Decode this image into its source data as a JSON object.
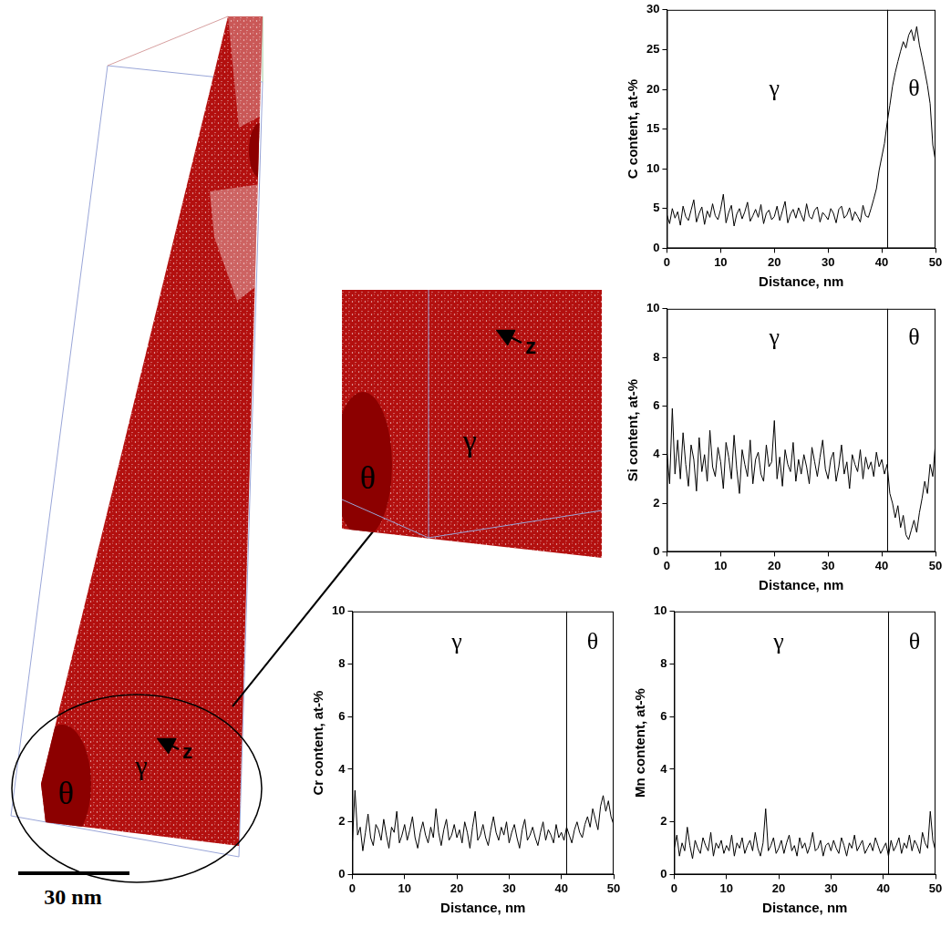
{
  "chart_data": [
    {
      "type": "line",
      "xlabel": "Distance, nm",
      "ylabel": "C content, at-%",
      "x": [
        0,
        0.5,
        1,
        1.5,
        2,
        2.5,
        3,
        3.5,
        4,
        4.5,
        5,
        5.5,
        6,
        6.5,
        7,
        7.5,
        8,
        8.5,
        9,
        9.5,
        10,
        10.5,
        11,
        11.5,
        12,
        12.5,
        13,
        13.5,
        14,
        14.5,
        15,
        15.5,
        16,
        16.5,
        17,
        17.5,
        18,
        18.5,
        19,
        19.5,
        20,
        20.5,
        21,
        21.5,
        22,
        22.5,
        23,
        23.5,
        24,
        24.5,
        25,
        25.5,
        26,
        26.5,
        27,
        27.5,
        28,
        28.5,
        29,
        29.5,
        30,
        30.5,
        31,
        31.5,
        32,
        32.5,
        33,
        33.5,
        34,
        34.5,
        35,
        35.5,
        36,
        36.5,
        37,
        37.5,
        38,
        38.5,
        39,
        39.5,
        40,
        40.5,
        41,
        41.5,
        42,
        42.5,
        43,
        43.5,
        44,
        44.5,
        45,
        45.5,
        46,
        46.5,
        47,
        47.5,
        48,
        48.5,
        49,
        49.5,
        50
      ],
      "series": [
        {
          "name": "C",
          "color": "#000000",
          "values": [
            4.2,
            3.1,
            5.0,
            3.8,
            4.6,
            2.9,
            5.3,
            4.0,
            3.5,
            4.8,
            6.1,
            3.3,
            4.4,
            5.2,
            3.0,
            4.7,
            3.9,
            5.6,
            4.1,
            3.6,
            4.9,
            6.8,
            3.2,
            4.5,
            5.4,
            2.8,
            4.3,
            5.0,
            3.7,
            4.6,
            5.8,
            3.4,
            4.1,
            4.9,
            3.9,
            5.5,
            3.1,
            4.4,
            4.8,
            3.6,
            4.0,
            5.3,
            3.5,
            4.7,
            5.9,
            3.2,
            4.3,
            4.9,
            3.8,
            5.1,
            4.2,
            3.4,
            5.6,
            4.0,
            3.7,
            4.8,
            5.2,
            3.3,
            4.5,
            4.1,
            3.6,
            5.0,
            4.4,
            3.2,
            4.9,
            5.3,
            3.8,
            4.2,
            5.1,
            3.5,
            4.6,
            4.0,
            3.3,
            5.4,
            4.1,
            3.9,
            5.0,
            6.2,
            7.5,
            9.8,
            11.5,
            13.2,
            15.8,
            18.0,
            20.4,
            22.1,
            23.5,
            24.8,
            26.0,
            25.2,
            26.8,
            27.5,
            26.1,
            27.9,
            25.6,
            24.0,
            22.3,
            20.5,
            18.2,
            13.0,
            11.0
          ]
        }
      ],
      "xlim": [
        0,
        50
      ],
      "xticks": [
        0,
        10,
        20,
        30,
        40,
        50
      ],
      "ylim": [
        0,
        30
      ],
      "yticks": [
        0,
        5,
        10,
        15,
        20,
        25,
        30
      ],
      "grid": false,
      "interface_x": 41,
      "annotations": [
        {
          "text": "γ",
          "x": 20,
          "y": 20
        },
        {
          "text": "θ",
          "x": 46,
          "y": 20
        }
      ]
    },
    {
      "type": "line",
      "xlabel": "Distance, nm",
      "ylabel": "Si content, at-%",
      "x": [
        0,
        0.5,
        1,
        1.5,
        2,
        2.5,
        3,
        3.5,
        4,
        4.5,
        5,
        5.5,
        6,
        6.5,
        7,
        7.5,
        8,
        8.5,
        9,
        9.5,
        10,
        10.5,
        11,
        11.5,
        12,
        12.5,
        13,
        13.5,
        14,
        14.5,
        15,
        15.5,
        16,
        16.5,
        17,
        17.5,
        18,
        18.5,
        19,
        19.5,
        20,
        20.5,
        21,
        21.5,
        22,
        22.5,
        23,
        23.5,
        24,
        24.5,
        25,
        25.5,
        26,
        26.5,
        27,
        27.5,
        28,
        28.5,
        29,
        29.5,
        30,
        30.5,
        31,
        31.5,
        32,
        32.5,
        33,
        33.5,
        34,
        34.5,
        35,
        35.5,
        36,
        36.5,
        37,
        37.5,
        38,
        38.5,
        39,
        39.5,
        40,
        40.5,
        41,
        41.5,
        42,
        42.5,
        43,
        43.5,
        44,
        44.5,
        45,
        45.5,
        46,
        46.5,
        47,
        47.5,
        48,
        48.5,
        49,
        49.5,
        50
      ],
      "series": [
        {
          "name": "Si",
          "color": "#000000",
          "values": [
            4.1,
            2.8,
            5.9,
            3.2,
            4.6,
            3.0,
            4.9,
            3.6,
            2.7,
            4.4,
            3.8,
            2.5,
            4.7,
            3.3,
            4.0,
            2.9,
            5.0,
            3.5,
            3.1,
            4.3,
            3.7,
            2.6,
            4.5,
            3.9,
            3.0,
            4.8,
            3.4,
            2.4,
            4.2,
            3.6,
            3.1,
            4.6,
            2.8,
            3.8,
            4.1,
            3.2,
            2.9,
            4.4,
            3.5,
            3.7,
            5.4,
            3.0,
            3.9,
            2.7,
            4.2,
            3.6,
            3.3,
            4.5,
            2.9,
            3.8,
            3.2,
            4.0,
            3.5,
            2.8,
            4.3,
            3.7,
            3.1,
            3.9,
            4.6,
            3.4,
            3.0,
            3.8,
            4.1,
            2.9,
            3.5,
            4.4,
            3.2,
            3.7,
            2.6,
            4.0,
            3.6,
            3.3,
            4.2,
            3.0,
            3.9,
            3.4,
            3.7,
            3.1,
            4.1,
            3.5,
            3.8,
            3.2,
            3.6,
            2.4,
            2.0,
            1.4,
            1.9,
            1.0,
            1.5,
            0.7,
            0.5,
            0.9,
            1.3,
            0.8,
            1.6,
            2.2,
            2.9,
            2.4,
            3.6,
            3.1,
            4.5
          ]
        }
      ],
      "xlim": [
        0,
        50
      ],
      "xticks": [
        0,
        10,
        20,
        30,
        40,
        50
      ],
      "ylim": [
        0,
        10
      ],
      "yticks": [
        0,
        2,
        4,
        6,
        8,
        10
      ],
      "grid": false,
      "interface_x": 41,
      "annotations": [
        {
          "text": "γ",
          "x": 20,
          "y": 8.8
        },
        {
          "text": "θ",
          "x": 46,
          "y": 8.8
        }
      ]
    },
    {
      "type": "line",
      "xlabel": "Distance, nm",
      "ylabel": "Cr content, at-%",
      "x": [
        0,
        0.5,
        1,
        1.5,
        2,
        2.5,
        3,
        3.5,
        4,
        4.5,
        5,
        5.5,
        6,
        6.5,
        7,
        7.5,
        8,
        8.5,
        9,
        9.5,
        10,
        10.5,
        11,
        11.5,
        12,
        12.5,
        13,
        13.5,
        14,
        14.5,
        15,
        15.5,
        16,
        16.5,
        17,
        17.5,
        18,
        18.5,
        19,
        19.5,
        20,
        20.5,
        21,
        21.5,
        22,
        22.5,
        23,
        23.5,
        24,
        24.5,
        25,
        25.5,
        26,
        26.5,
        27,
        27.5,
        28,
        28.5,
        29,
        29.5,
        30,
        30.5,
        31,
        31.5,
        32,
        32.5,
        33,
        33.5,
        34,
        34.5,
        35,
        35.5,
        36,
        36.5,
        37,
        37.5,
        38,
        38.5,
        39,
        39.5,
        40,
        40.5,
        41,
        41.5,
        42,
        42.5,
        43,
        43.5,
        44,
        44.5,
        45,
        45.5,
        46,
        46.5,
        47,
        47.5,
        48,
        48.5,
        49,
        49.5,
        50
      ],
      "series": [
        {
          "name": "Cr",
          "color": "#000000",
          "values": [
            1.2,
            3.2,
            1.5,
            1.8,
            0.9,
            1.6,
            2.3,
            1.4,
            1.1,
            1.9,
            1.7,
            1.3,
            2.1,
            1.5,
            1.0,
            1.8,
            1.6,
            2.4,
            1.2,
            1.5,
            1.9,
            1.3,
            1.7,
            2.2,
            1.4,
            1.0,
            1.6,
            2.0,
            1.5,
            1.2,
            1.8,
            1.4,
            2.5,
            1.6,
            1.1,
            1.7,
            2.1,
            1.3,
            1.5,
            1.9,
            1.4,
            1.7,
            1.2,
            2.0,
            1.6,
            1.0,
            1.8,
            2.4,
            1.3,
            1.5,
            1.9,
            1.4,
            1.1,
            1.7,
            2.2,
            1.6,
            1.3,
            1.8,
            1.5,
            2.0,
            1.2,
            1.6,
            1.9,
            1.4,
            1.0,
            1.7,
            2.1,
            1.3,
            1.5,
            1.8,
            1.4,
            1.1,
            1.6,
            2.0,
            1.3,
            1.7,
            1.5,
            1.2,
            1.9,
            1.4,
            1.6,
            1.3,
            1.8,
            1.5,
            1.2,
            1.7,
            2.0,
            1.6,
            1.4,
            1.9,
            2.2,
            1.8,
            2.5,
            2.1,
            1.7,
            2.6,
            3.0,
            2.4,
            2.8,
            2.2,
            1.9
          ]
        }
      ],
      "xlim": [
        0,
        50
      ],
      "xticks": [
        0,
        10,
        20,
        30,
        40,
        50
      ],
      "ylim": [
        0,
        10
      ],
      "yticks": [
        0,
        2,
        4,
        6,
        8,
        10
      ],
      "grid": false,
      "interface_x": 41,
      "annotations": [
        {
          "text": "γ",
          "x": 20,
          "y": 8.8
        },
        {
          "text": "θ",
          "x": 46,
          "y": 8.8
        }
      ]
    },
    {
      "type": "line",
      "xlabel": "Distance, nm",
      "ylabel": "Mn content, at-%",
      "x": [
        0,
        0.5,
        1,
        1.5,
        2,
        2.5,
        3,
        3.5,
        4,
        4.5,
        5,
        5.5,
        6,
        6.5,
        7,
        7.5,
        8,
        8.5,
        9,
        9.5,
        10,
        10.5,
        11,
        11.5,
        12,
        12.5,
        13,
        13.5,
        14,
        14.5,
        15,
        15.5,
        16,
        16.5,
        17,
        17.5,
        18,
        18.5,
        19,
        19.5,
        20,
        20.5,
        21,
        21.5,
        22,
        22.5,
        23,
        23.5,
        24,
        24.5,
        25,
        25.5,
        26,
        26.5,
        27,
        27.5,
        28,
        28.5,
        29,
        29.5,
        30,
        30.5,
        31,
        31.5,
        32,
        32.5,
        33,
        33.5,
        34,
        34.5,
        35,
        35.5,
        36,
        36.5,
        37,
        37.5,
        38,
        38.5,
        39,
        39.5,
        40,
        40.5,
        41,
        41.5,
        42,
        42.5,
        43,
        43.5,
        44,
        44.5,
        45,
        45.5,
        46,
        46.5,
        47,
        47.5,
        48,
        48.5,
        49,
        49.5,
        50
      ],
      "series": [
        {
          "name": "Mn",
          "color": "#000000",
          "values": [
            1.0,
            1.5,
            0.7,
            1.2,
            0.9,
            1.8,
            1.1,
            0.6,
            1.3,
            1.0,
            0.8,
            1.4,
            1.1,
            0.9,
            1.6,
            0.7,
            1.2,
            1.0,
            1.3,
            0.8,
            1.1,
            0.9,
            1.5,
            0.7,
            1.2,
            1.0,
            1.4,
            0.8,
            1.1,
            1.3,
            0.9,
            1.6,
            1.0,
            0.7,
            1.2,
            2.5,
            0.9,
            1.1,
            1.4,
            0.8,
            1.0,
            1.3,
            0.8,
            1.2,
            1.5,
            0.9,
            1.1,
            0.7,
            1.4,
            1.0,
            1.2,
            0.8,
            1.1,
            1.6,
            0.9,
            1.0,
            1.3,
            0.7,
            1.1,
            1.2,
            0.9,
            1.3,
            1.0,
            0.8,
            1.4,
            1.1,
            0.7,
            1.2,
            1.0,
            1.5,
            0.9,
            1.1,
            1.3,
            0.8,
            1.0,
            1.2,
            0.9,
            1.4,
            1.1,
            0.8,
            1.0,
            1.2,
            0.7,
            1.3,
            0.9,
            1.1,
            1.4,
            0.8,
            1.2,
            1.0,
            1.5,
            0.9,
            1.3,
            1.1,
            0.8,
            1.6,
            1.2,
            1.0,
            2.4,
            1.3,
            0.9
          ]
        }
      ],
      "xlim": [
        0,
        50
      ],
      "xticks": [
        0,
        10,
        20,
        30,
        40,
        50
      ],
      "ylim": [
        0,
        10
      ],
      "yticks": [
        0,
        2,
        4,
        6,
        8,
        10
      ],
      "grid": false,
      "interface_x": 41,
      "annotations": [
        {
          "text": "γ",
          "x": 20,
          "y": 8.8
        },
        {
          "text": "θ",
          "x": 46,
          "y": 8.8
        }
      ]
    }
  ],
  "reconstruction": {
    "main": {
      "phase_labels": [
        "θ",
        "γ"
      ],
      "axis_label": "z"
    },
    "inset": {
      "phase_labels": [
        "θ",
        "γ"
      ],
      "axis_label": "z"
    },
    "scale_bar": "30 nm"
  }
}
